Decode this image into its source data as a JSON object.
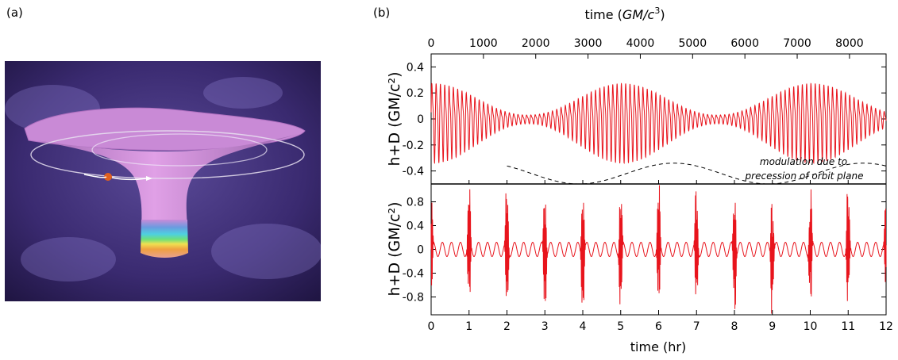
{
  "panels": {
    "a": "(a)",
    "b": "(b)"
  },
  "illustration": {
    "icon": "black-hole-embedding-diagram"
  },
  "colors": {
    "signal": "#e8141c",
    "axis": "#000000",
    "bg_dark": "#3b2c6e",
    "funnel": "#cf86d8"
  },
  "annotation": {
    "line1": "modulation due to",
    "line2": "precession of orbit plane"
  },
  "chart_data": [
    {
      "type": "line",
      "title": "",
      "xlabel_top": "time  (GM/c³)",
      "xlabel_top_parts": {
        "pre": "time  (",
        "it": "GM",
        "mid": "/",
        "it2": "c",
        "sup": "3",
        "post": ")"
      },
      "ylabel": "h+D (GM/c²)",
      "xlim_top": [
        0,
        8700
      ],
      "xticks_top": [
        0,
        1000,
        2000,
        3000,
        4000,
        5000,
        6000,
        7000,
        8000
      ],
      "ylim": [
        -0.5,
        0.5
      ],
      "yticks": [
        0.4,
        0.2,
        0,
        -0.2,
        -0.4
      ],
      "yticklabels": [
        "0.4",
        "0.2",
        "0",
        "-0.2",
        "-0.4"
      ],
      "series": [
        {
          "x_range_hr": [
            0,
            12
          ],
          "carrier_cycles_per_hr": 8.8,
          "max_amplitude": 0.36,
          "min_amplitude": 0.04,
          "envelope_period_hr": 5.0
        }
      ],
      "envelope": {
        "x_range_hr": [
          2.0,
          12.0
        ],
        "y_center": -0.42,
        "amplitude": 0.08,
        "period_hr": 5.0,
        "style": "dashed"
      }
    },
    {
      "type": "line",
      "title": "",
      "xlabel": "time (hr)",
      "ylabel": "h+D (GM/c²)",
      "xlim": [
        0,
        12
      ],
      "xticks": [
        0,
        1,
        2,
        3,
        4,
        5,
        6,
        7,
        8,
        9,
        10,
        11,
        12
      ],
      "ylim": [
        -1.1,
        1.1
      ],
      "yticks": [
        0.8,
        0.4,
        0,
        -0.4,
        -0.8
      ],
      "yticklabels": [
        "0.8",
        "0.4",
        "0",
        "-0.4",
        "-0.8"
      ],
      "series": [
        {
          "x_range_hr": [
            0,
            12
          ],
          "burst_period_hr": 1.0,
          "max_amplitude": 1.0,
          "background_amplitude": 0.12
        }
      ]
    }
  ]
}
